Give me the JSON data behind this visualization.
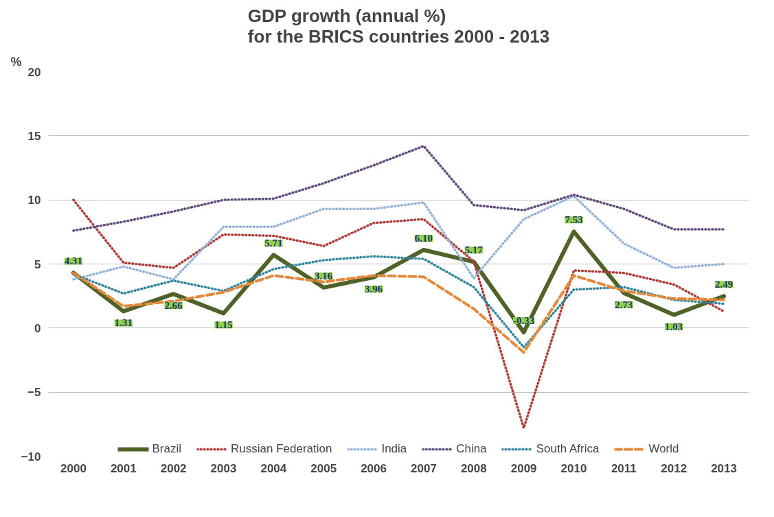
{
  "chart_data": {
    "type": "line",
    "title": "GDP growth (annual %)\nfor the BRICS countries 2000 - 2013",
    "ylabel": "%",
    "categories": [
      "2000",
      "2001",
      "2002",
      "2003",
      "2004",
      "2005",
      "2006",
      "2007",
      "2008",
      "2009",
      "2010",
      "2011",
      "2012",
      "2013"
    ],
    "ylim": [
      -10,
      20
    ],
    "yticks": [
      -10,
      -5,
      0,
      5,
      10,
      15,
      20
    ],
    "grid": "y",
    "legend": "bottom",
    "marker": "none",
    "series": [
      {
        "name": "Brazil",
        "color": "#4f6228",
        "line_style": "solid",
        "values": [
          4.31,
          1.31,
          2.66,
          1.15,
          5.71,
          3.16,
          3.96,
          6.1,
          5.17,
          -0.33,
          7.53,
          2.73,
          1.03,
          2.49
        ],
        "value_labels": [
          "4.31",
          "1.31",
          "2.66",
          "1.15",
          "5.71",
          "3.16",
          "3.96",
          "6.10",
          "5.17",
          "-0.33",
          "7.53",
          "2.73",
          "1.03",
          "2.49"
        ]
      },
      {
        "name": "Russian Federation",
        "color": "#b03a36",
        "line_style": "dotted",
        "values": [
          10.0,
          5.1,
          4.7,
          7.3,
          7.2,
          6.4,
          8.2,
          8.5,
          5.2,
          -7.8,
          4.5,
          4.3,
          3.4,
          1.3
        ]
      },
      {
        "name": "India",
        "color": "#95b3d7",
        "line_style": "dotted",
        "values": [
          3.8,
          4.8,
          3.8,
          7.9,
          7.9,
          9.3,
          9.3,
          9.8,
          3.9,
          8.5,
          10.3,
          6.6,
          4.7,
          5.0
        ]
      },
      {
        "name": "China",
        "color": "#604a7b",
        "line_style": "dotted",
        "values": [
          7.6,
          8.3,
          9.1,
          10.0,
          10.1,
          11.3,
          12.7,
          14.2,
          9.6,
          9.2,
          10.4,
          9.3,
          7.7,
          7.7
        ]
      },
      {
        "name": "South Africa",
        "color": "#31859c",
        "line_style": "dotted",
        "values": [
          4.2,
          2.7,
          3.7,
          2.9,
          4.6,
          5.3,
          5.6,
          5.4,
          3.2,
          -1.5,
          3.0,
          3.2,
          2.2,
          1.9
        ]
      },
      {
        "name": "World",
        "color": "#e4883a",
        "line_style": "dashed",
        "values": [
          4.3,
          1.7,
          2.1,
          2.8,
          4.1,
          3.6,
          4.1,
          4.0,
          1.5,
          -1.9,
          4.1,
          2.9,
          2.3,
          2.2
        ]
      }
    ]
  }
}
